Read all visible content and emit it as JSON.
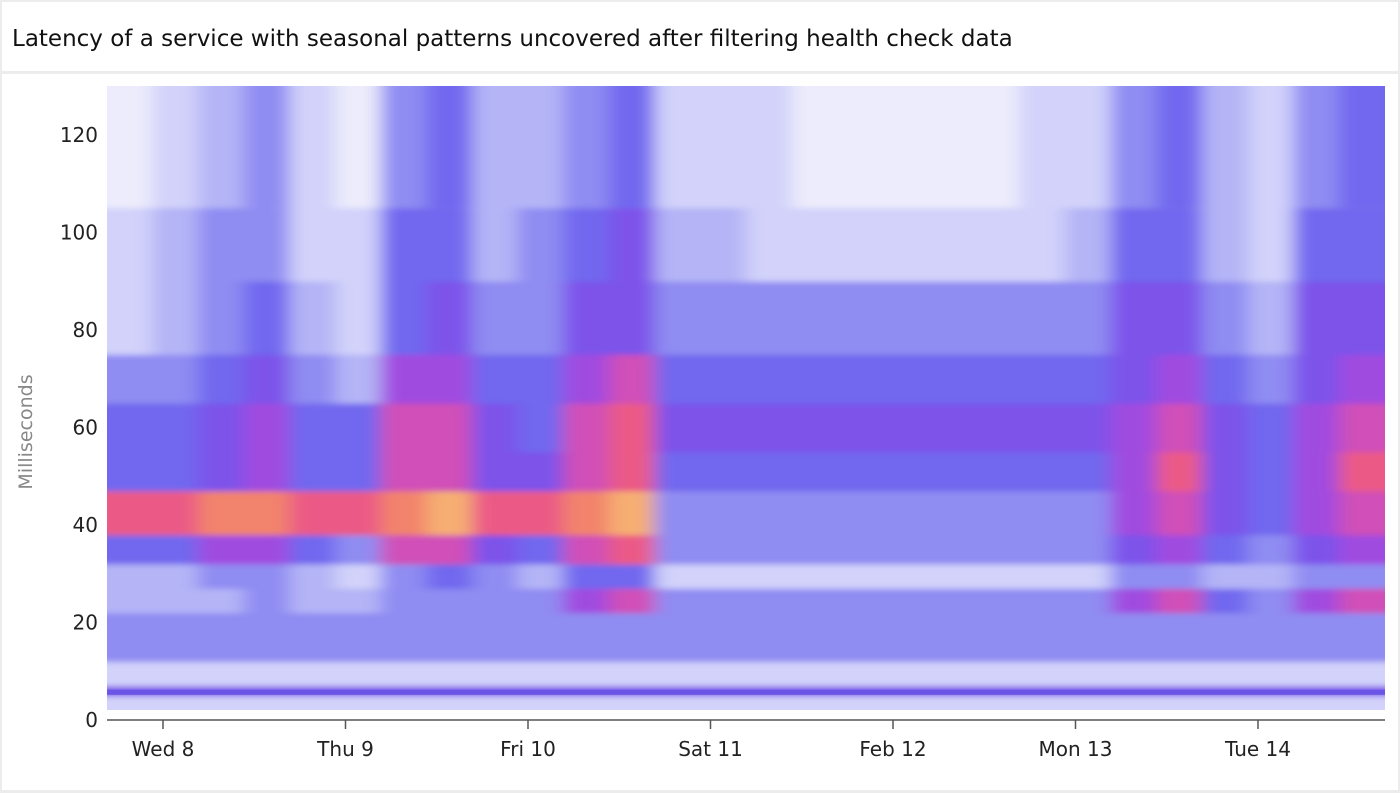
{
  "title": "Latency of a service with seasonal patterns uncovered after filtering health check data",
  "chart_data": {
    "type": "heatmap",
    "title": "Latency of a service with seasonal patterns uncovered after filtering health check data",
    "xlabel": "",
    "ylabel": "Milliseconds",
    "ylim": [
      0,
      130
    ],
    "y_ticks": [
      "0",
      "20",
      "40",
      "60",
      "80",
      "100",
      "120"
    ],
    "x_ticks": [
      "Wed 8",
      "Thu 9",
      "Fri 10",
      "Sat 11",
      "Feb 12",
      "Mon 13",
      "Tue 14"
    ],
    "x_start": "Feb 7 16:00",
    "x_bin_hours": 6,
    "y_bin_edges": [
      2,
      5,
      7,
      12,
      16,
      22,
      27,
      32,
      38,
      47,
      55,
      65,
      75,
      90,
      105,
      130
    ],
    "intensity_range": [
      0,
      10
    ],
    "colorscale": [
      "#ececfc",
      "#d2d2fa",
      "#b4b4f6",
      "#8f8cf2",
      "#7168ef",
      "#7d52ea",
      "#a04be0",
      "#d04fb8",
      "#eb5a86",
      "#f2836c",
      "#f6ae72"
    ],
    "columns": [
      [
        1,
        5,
        1,
        3,
        3,
        2,
        2,
        4,
        8,
        4,
        4,
        3,
        1,
        1,
        0
      ],
      [
        1,
        5,
        1,
        3,
        3,
        2,
        2,
        4,
        8,
        4,
        4,
        3,
        2,
        2,
        1
      ],
      [
        1,
        5,
        1,
        3,
        3,
        2,
        3,
        6,
        9,
        5,
        5,
        4,
        3,
        3,
        2
      ],
      [
        1,
        5,
        1,
        3,
        3,
        3,
        3,
        6,
        9,
        6,
        6,
        5,
        4,
        3,
        3
      ],
      [
        1,
        5,
        1,
        3,
        3,
        2,
        2,
        4,
        8,
        4,
        4,
        3,
        2,
        1,
        1
      ],
      [
        1,
        5,
        1,
        3,
        3,
        2,
        1,
        3,
        8,
        4,
        4,
        2,
        1,
        1,
        0
      ],
      [
        1,
        5,
        1,
        3,
        3,
        3,
        3,
        7,
        9,
        7,
        7,
        6,
        4,
        4,
        3
      ],
      [
        1,
        5,
        1,
        3,
        3,
        3,
        4,
        7,
        10,
        7,
        7,
        6,
        5,
        4,
        4
      ],
      [
        1,
        5,
        1,
        3,
        3,
        3,
        3,
        5,
        8,
        5,
        5,
        4,
        3,
        2,
        2
      ],
      [
        1,
        5,
        1,
        3,
        3,
        3,
        2,
        4,
        8,
        5,
        4,
        4,
        3,
        3,
        2
      ],
      [
        1,
        5,
        1,
        3,
        3,
        6,
        4,
        7,
        9,
        7,
        7,
        6,
        5,
        4,
        3
      ],
      [
        1,
        5,
        1,
        3,
        3,
        7,
        4,
        8,
        10,
        8,
        8,
        7,
        5,
        5,
        4
      ],
      [
        1,
        5,
        1,
        3,
        3,
        3,
        1,
        3,
        3,
        4,
        5,
        4,
        3,
        2,
        1
      ],
      [
        1,
        5,
        1,
        3,
        3,
        3,
        1,
        3,
        3,
        4,
        5,
        4,
        3,
        2,
        1
      ],
      [
        1,
        5,
        1,
        3,
        3,
        3,
        1,
        3,
        3,
        4,
        5,
        4,
        3,
        1,
        1
      ],
      [
        1,
        5,
        1,
        3,
        3,
        3,
        1,
        3,
        3,
        4,
        5,
        4,
        3,
        1,
        0
      ],
      [
        1,
        5,
        1,
        3,
        3,
        3,
        1,
        3,
        3,
        4,
        5,
        4,
        3,
        1,
        0
      ],
      [
        1,
        5,
        1,
        3,
        3,
        3,
        1,
        3,
        3,
        4,
        5,
        4,
        3,
        1,
        0
      ],
      [
        1,
        5,
        1,
        3,
        3,
        3,
        1,
        3,
        3,
        4,
        5,
        4,
        3,
        1,
        0
      ],
      [
        1,
        5,
        1,
        3,
        3,
        3,
        1,
        3,
        3,
        4,
        5,
        4,
        3,
        1,
        0
      ],
      [
        1,
        5,
        1,
        3,
        3,
        3,
        1,
        3,
        3,
        4,
        5,
        4,
        3,
        1,
        1
      ],
      [
        1,
        5,
        1,
        3,
        3,
        3,
        1,
        3,
        3,
        4,
        5,
        4,
        3,
        2,
        1
      ],
      [
        1,
        5,
        1,
        3,
        3,
        6,
        3,
        5,
        6,
        6,
        6,
        5,
        5,
        4,
        3
      ],
      [
        1,
        5,
        1,
        3,
        3,
        7,
        3,
        6,
        7,
        8,
        7,
        6,
        5,
        4,
        4
      ],
      [
        1,
        5,
        1,
        3,
        3,
        4,
        2,
        4,
        5,
        5,
        5,
        4,
        3,
        2,
        2
      ],
      [
        1,
        5,
        1,
        3,
        3,
        3,
        2,
        3,
        4,
        4,
        4,
        3,
        2,
        1,
        1
      ],
      [
        1,
        5,
        1,
        3,
        3,
        6,
        3,
        5,
        6,
        6,
        6,
        5,
        5,
        4,
        3
      ],
      [
        1,
        5,
        1,
        3,
        3,
        7,
        3,
        6,
        7,
        8,
        7,
        6,
        5,
        4,
        4
      ]
    ]
  }
}
